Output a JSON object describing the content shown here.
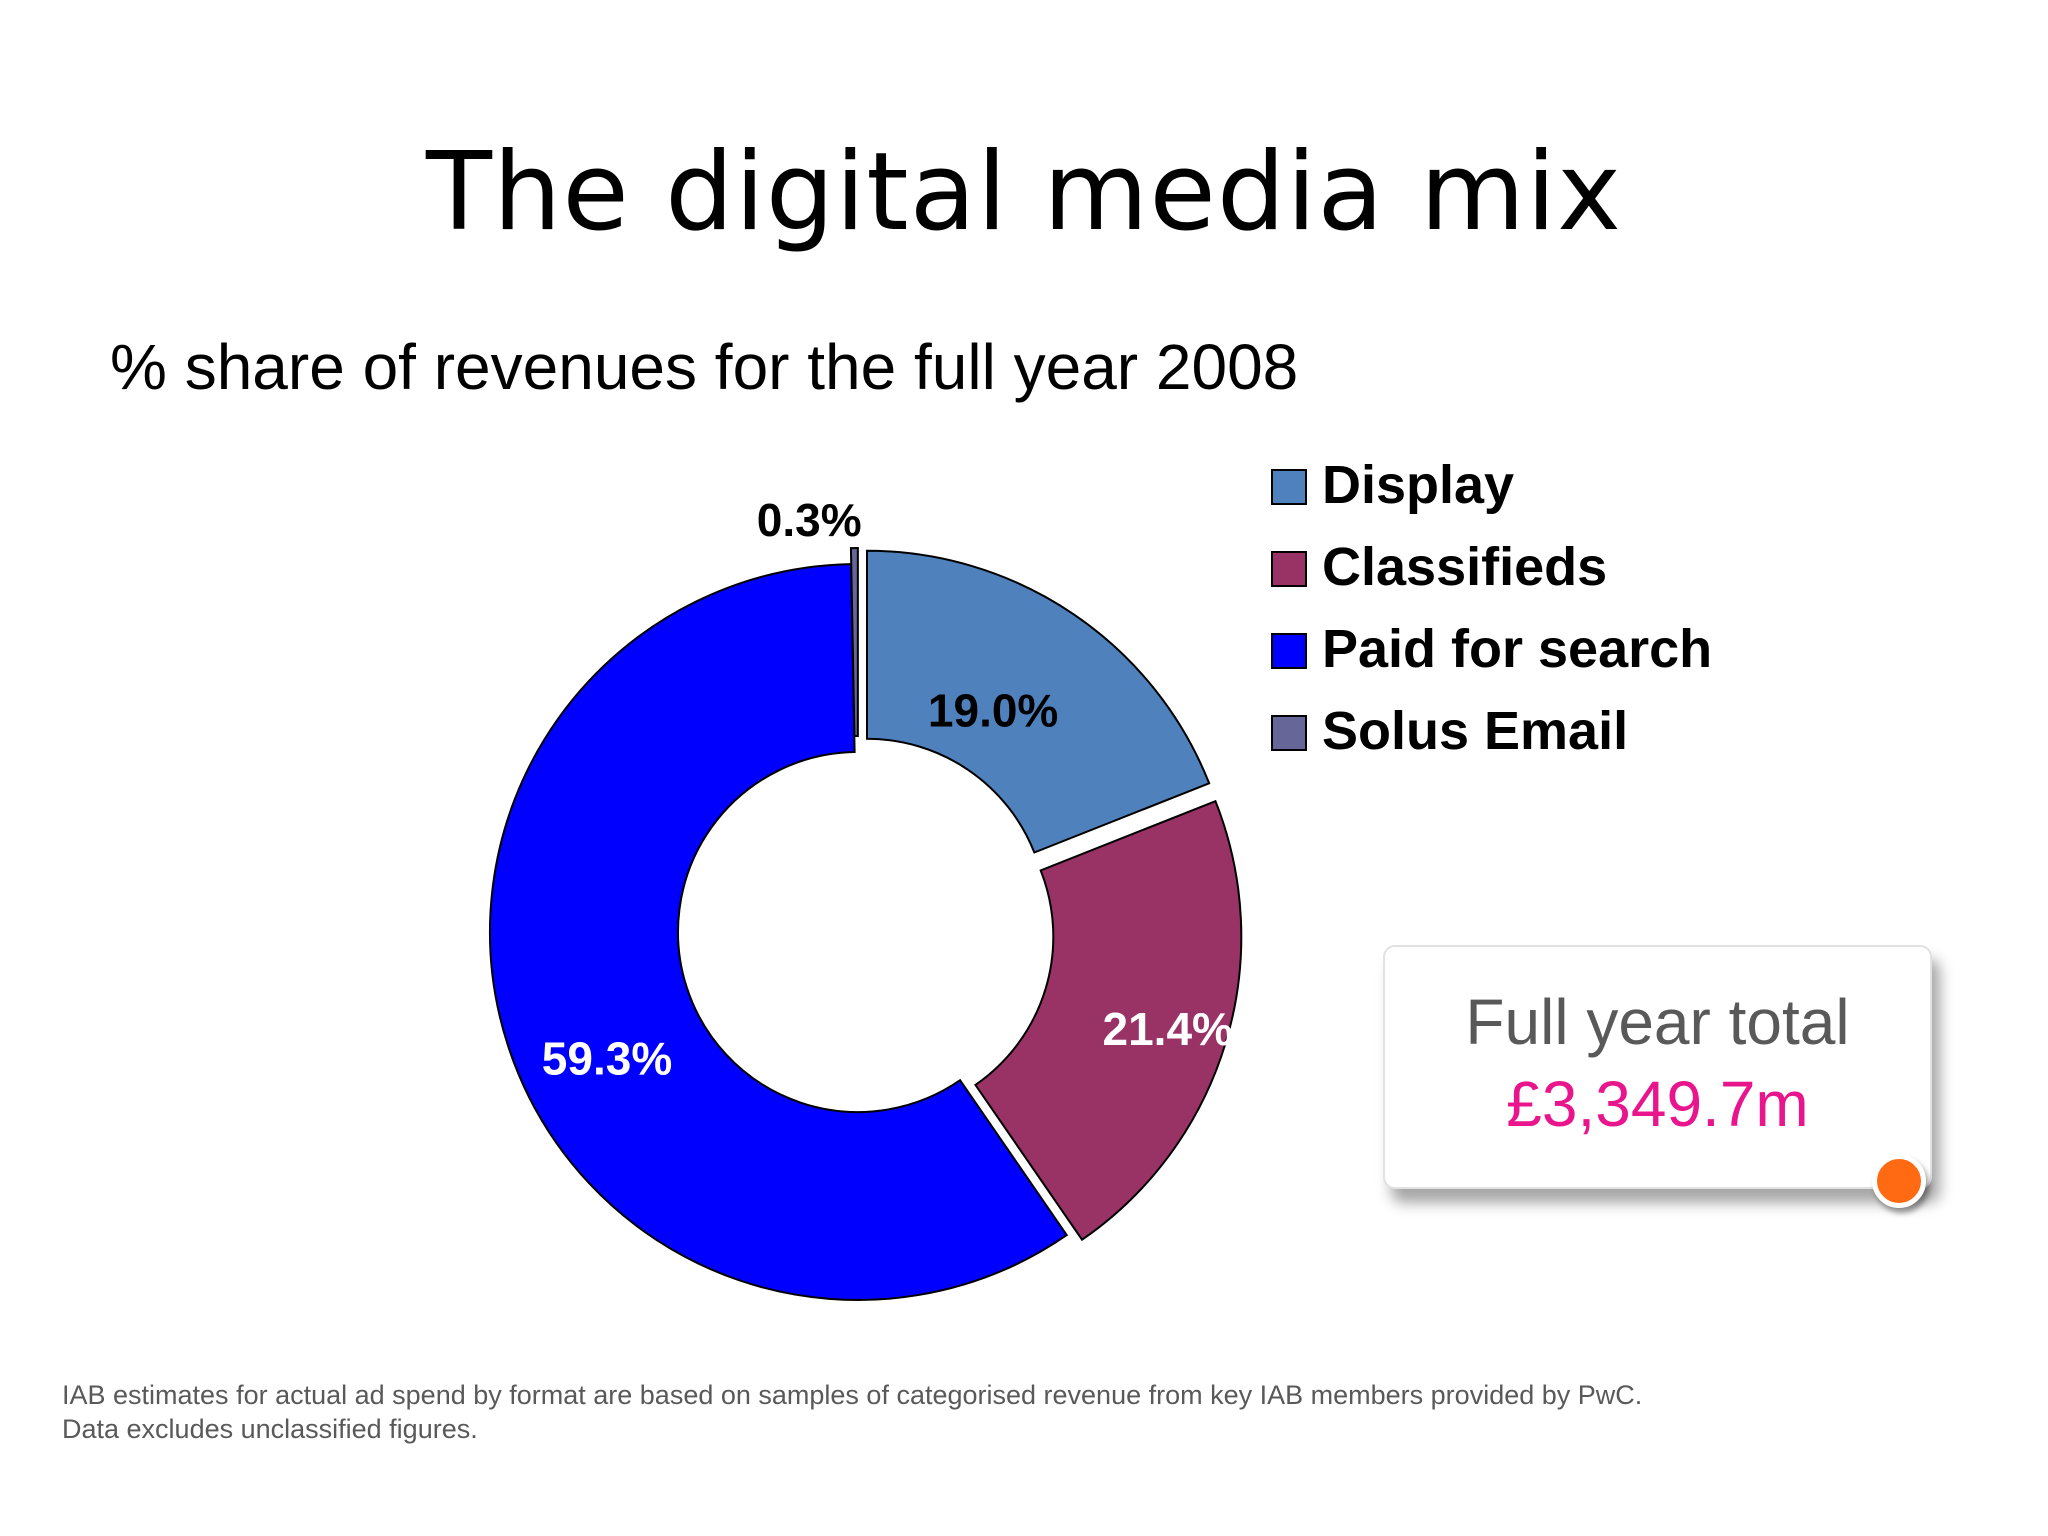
{
  "title": "The digital media mix",
  "subtitle": "% share of revenues for the full year 2008",
  "chart_data": {
    "type": "pie",
    "donut": true,
    "categories": [
      "Display",
      "Classifieds",
      "Paid for search",
      "Solus Email"
    ],
    "values": [
      19.0,
      21.4,
      59.3,
      0.3
    ],
    "labels": [
      "19.0%",
      "21.4%",
      "59.3%",
      "0.3%"
    ],
    "colors": [
      "#4f81bd",
      "#993366",
      "#0000ff",
      "#666699"
    ],
    "label_colors": [
      "#000000",
      "#ffffff",
      "#ffffff",
      "#000000"
    ],
    "exploded": [
      "Display",
      "Classifieds",
      "Solus Email"
    ],
    "legend_position": "top-right"
  },
  "callout": {
    "label": "Full year total",
    "value": "£3,349.7m",
    "value_color": "#e8158c",
    "dot_color": "#ff6a13"
  },
  "footnote": {
    "line1": "IAB estimates for actual ad spend by  format are based on samples of categorised revenue from key IAB members provided by PwC.",
    "line2": "Data excludes unclassified figures."
  }
}
